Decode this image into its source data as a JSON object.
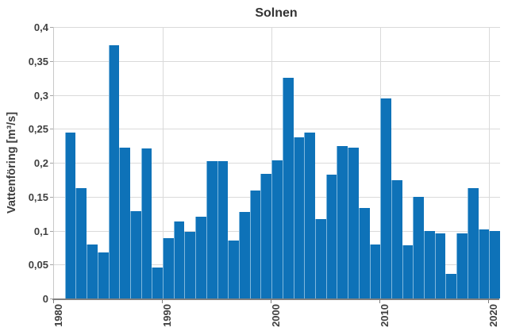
{
  "chart_data": {
    "type": "bar",
    "title": "Solnen",
    "xlabel": "",
    "ylabel": "Vattenföring [m³/s]",
    "ylim": [
      0,
      0.4
    ],
    "grid": true,
    "legend": false,
    "decimal_separator": ",",
    "y_ticks": [
      0,
      0.05,
      0.1,
      0.15,
      0.2,
      0.25,
      0.3,
      0.35,
      0.4
    ],
    "y_tick_labels": [
      "0",
      "0,05",
      "0,1",
      "0,15",
      "0,2",
      "0,25",
      "0,3",
      "0,35",
      "0,4"
    ],
    "x_axis_start_year": 1980,
    "x_axis_end_year": 2020,
    "x_tick_years": [
      1980,
      1990,
      2000,
      2010,
      2020
    ],
    "x_tick_labels": [
      "1980",
      "1990",
      "2000",
      "2010",
      "2020"
    ],
    "years": [
      1981,
      1982,
      1983,
      1984,
      1985,
      1986,
      1987,
      1988,
      1989,
      1990,
      1991,
      1992,
      1993,
      1994,
      1995,
      1996,
      1997,
      1998,
      1999,
      2000,
      2001,
      2002,
      2003,
      2004,
      2005,
      2006,
      2007,
      2008,
      2009,
      2010,
      2011,
      2012,
      2013,
      2014,
      2015,
      2016,
      2017,
      2018,
      2019,
      2020
    ],
    "values": [
      0.245,
      0.163,
      0.079,
      0.068,
      0.373,
      0.222,
      0.129,
      0.221,
      0.046,
      0.089,
      0.113,
      0.098,
      0.121,
      0.202,
      0.202,
      0.085,
      0.127,
      0.159,
      0.184,
      0.203,
      0.325,
      0.238,
      0.244,
      0.117,
      0.183,
      0.224,
      0.222,
      0.133,
      0.08,
      0.295,
      0.174,
      0.078,
      0.15,
      0.1,
      0.096,
      0.036,
      0.096,
      0.163,
      0.102,
      0.099
    ],
    "colors": {
      "bar": "#0e72b8",
      "gridline": "#dadada",
      "axis_line": "#7f7f7f",
      "text": "#404040"
    }
  }
}
